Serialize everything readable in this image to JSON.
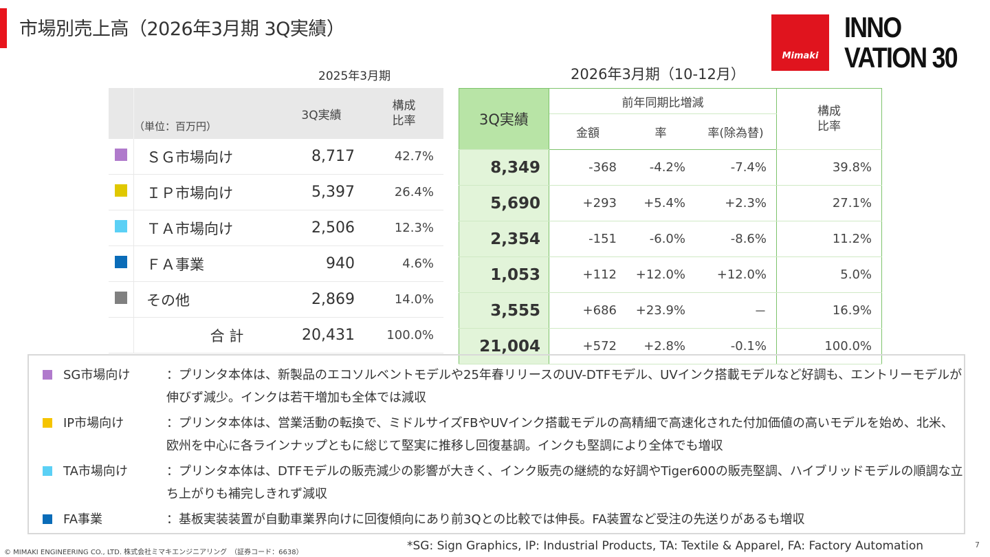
{
  "title": "市場別売上高（2026年3月期 3Q実績）",
  "logo": {
    "brand": "Mimaki",
    "tagline": "INNOVATION 30",
    "brand_color": "#e0141e"
  },
  "prev": {
    "period": "2025年3月期",
    "unit": "（単位：百万円）",
    "col_actual": "3Q実績",
    "col_ratio": "構成\n比率"
  },
  "curr": {
    "period": "2026年3月期（10-12月）",
    "col_actual": "3Q実績",
    "col_yoy": "前年同期比増減",
    "col_amount": "金額",
    "col_rate": "率",
    "col_rate_fx": "率(除為替)",
    "col_ratio": "構成\n比率"
  },
  "rows": [
    {
      "label": "ＳＧ市場向け",
      "color": "#b07acc",
      "prev": "8,717",
      "prev_ratio": "42.7%",
      "curr": "8,349",
      "amount": "-368",
      "rate": "-4.2%",
      "rate_fx": "-7.4%",
      "ratio": "39.8%"
    },
    {
      "label": "ＩＰ市場向け",
      "color": "#e0c800",
      "prev": "5,397",
      "prev_ratio": "26.4%",
      "curr": "5,690",
      "amount": "+293",
      "rate": "+5.4%",
      "rate_fx": "+2.3%",
      "ratio": "27.1%"
    },
    {
      "label": "ＴＡ市場向け",
      "color": "#5bd0f5",
      "prev": "2,506",
      "prev_ratio": "12.3%",
      "curr": "2,354",
      "amount": "-151",
      "rate": "-6.0%",
      "rate_fx": "-8.6%",
      "ratio": "11.2%"
    },
    {
      "label": "ＦＡ事業",
      "color": "#0a6cb8",
      "prev": "940",
      "prev_ratio": "4.6%",
      "curr": "1,053",
      "amount": "+112",
      "rate": "+12.0%",
      "rate_fx": "+12.0%",
      "ratio": "5.0%"
    },
    {
      "label": "その他",
      "color": "#808080",
      "prev": "2,869",
      "prev_ratio": "14.0%",
      "curr": "3,555",
      "amount": "+686",
      "rate": "+23.9%",
      "rate_fx": "－",
      "ratio": "16.9%"
    },
    {
      "label": "合 計",
      "color": "",
      "prev": "20,431",
      "prev_ratio": "100.0%",
      "curr": "21,004",
      "amount": "+572",
      "rate": "+2.8%",
      "rate_fx": "-0.1%",
      "ratio": "100.0%"
    }
  ],
  "notes": [
    {
      "label": "SG市場向け",
      "color": "#b07acc",
      "text": "：プリンタ本体は、新製品のエコソルベントモデルや25年春リリースのUV-DTFモデル、UVインク搭載モデルなど好調も、エントリーモデルが伸びず減少。インクは若干増加も全体では減収"
    },
    {
      "label": "IP市場向け",
      "color": "#f5c400",
      "text": "：プリンタ本体は、営業活動の転換で、ミドルサイズFBやUVインク搭載モデルの高精細で高速化された付加価値の高いモデルを始め、北米、欧州を中心に各ラインナップともに総じて堅実に推移し回復基調。インクも堅調により全体でも増収"
    },
    {
      "label": "TA市場向け",
      "color": "#5bd0f5",
      "text": "：プリンタ本体は、DTFモデルの販売減少の影響が大きく、インク販売の継続的な好調やTiger600の販売堅調、ハイブリッドモデルの順調な立ち上がりも補完しきれず減収"
    },
    {
      "label": "FA事業",
      "color": "#0a6cb8",
      "text": "：基板実装装置が自動車業界向けに回復傾向にあり前3Qとの比較では伸長。FA装置など受注の先送りがあるも増収"
    }
  ],
  "footer": {
    "copyright": "© MIMAKI ENGINEERING CO., LTD. 株式会社ミマキエンジニアリング　（証券コード：6638）",
    "abbrev": "*SG: Sign Graphics, IP: Industrial Products, TA: Textile & Apparel, FA: Factory Automation",
    "page": "7"
  }
}
